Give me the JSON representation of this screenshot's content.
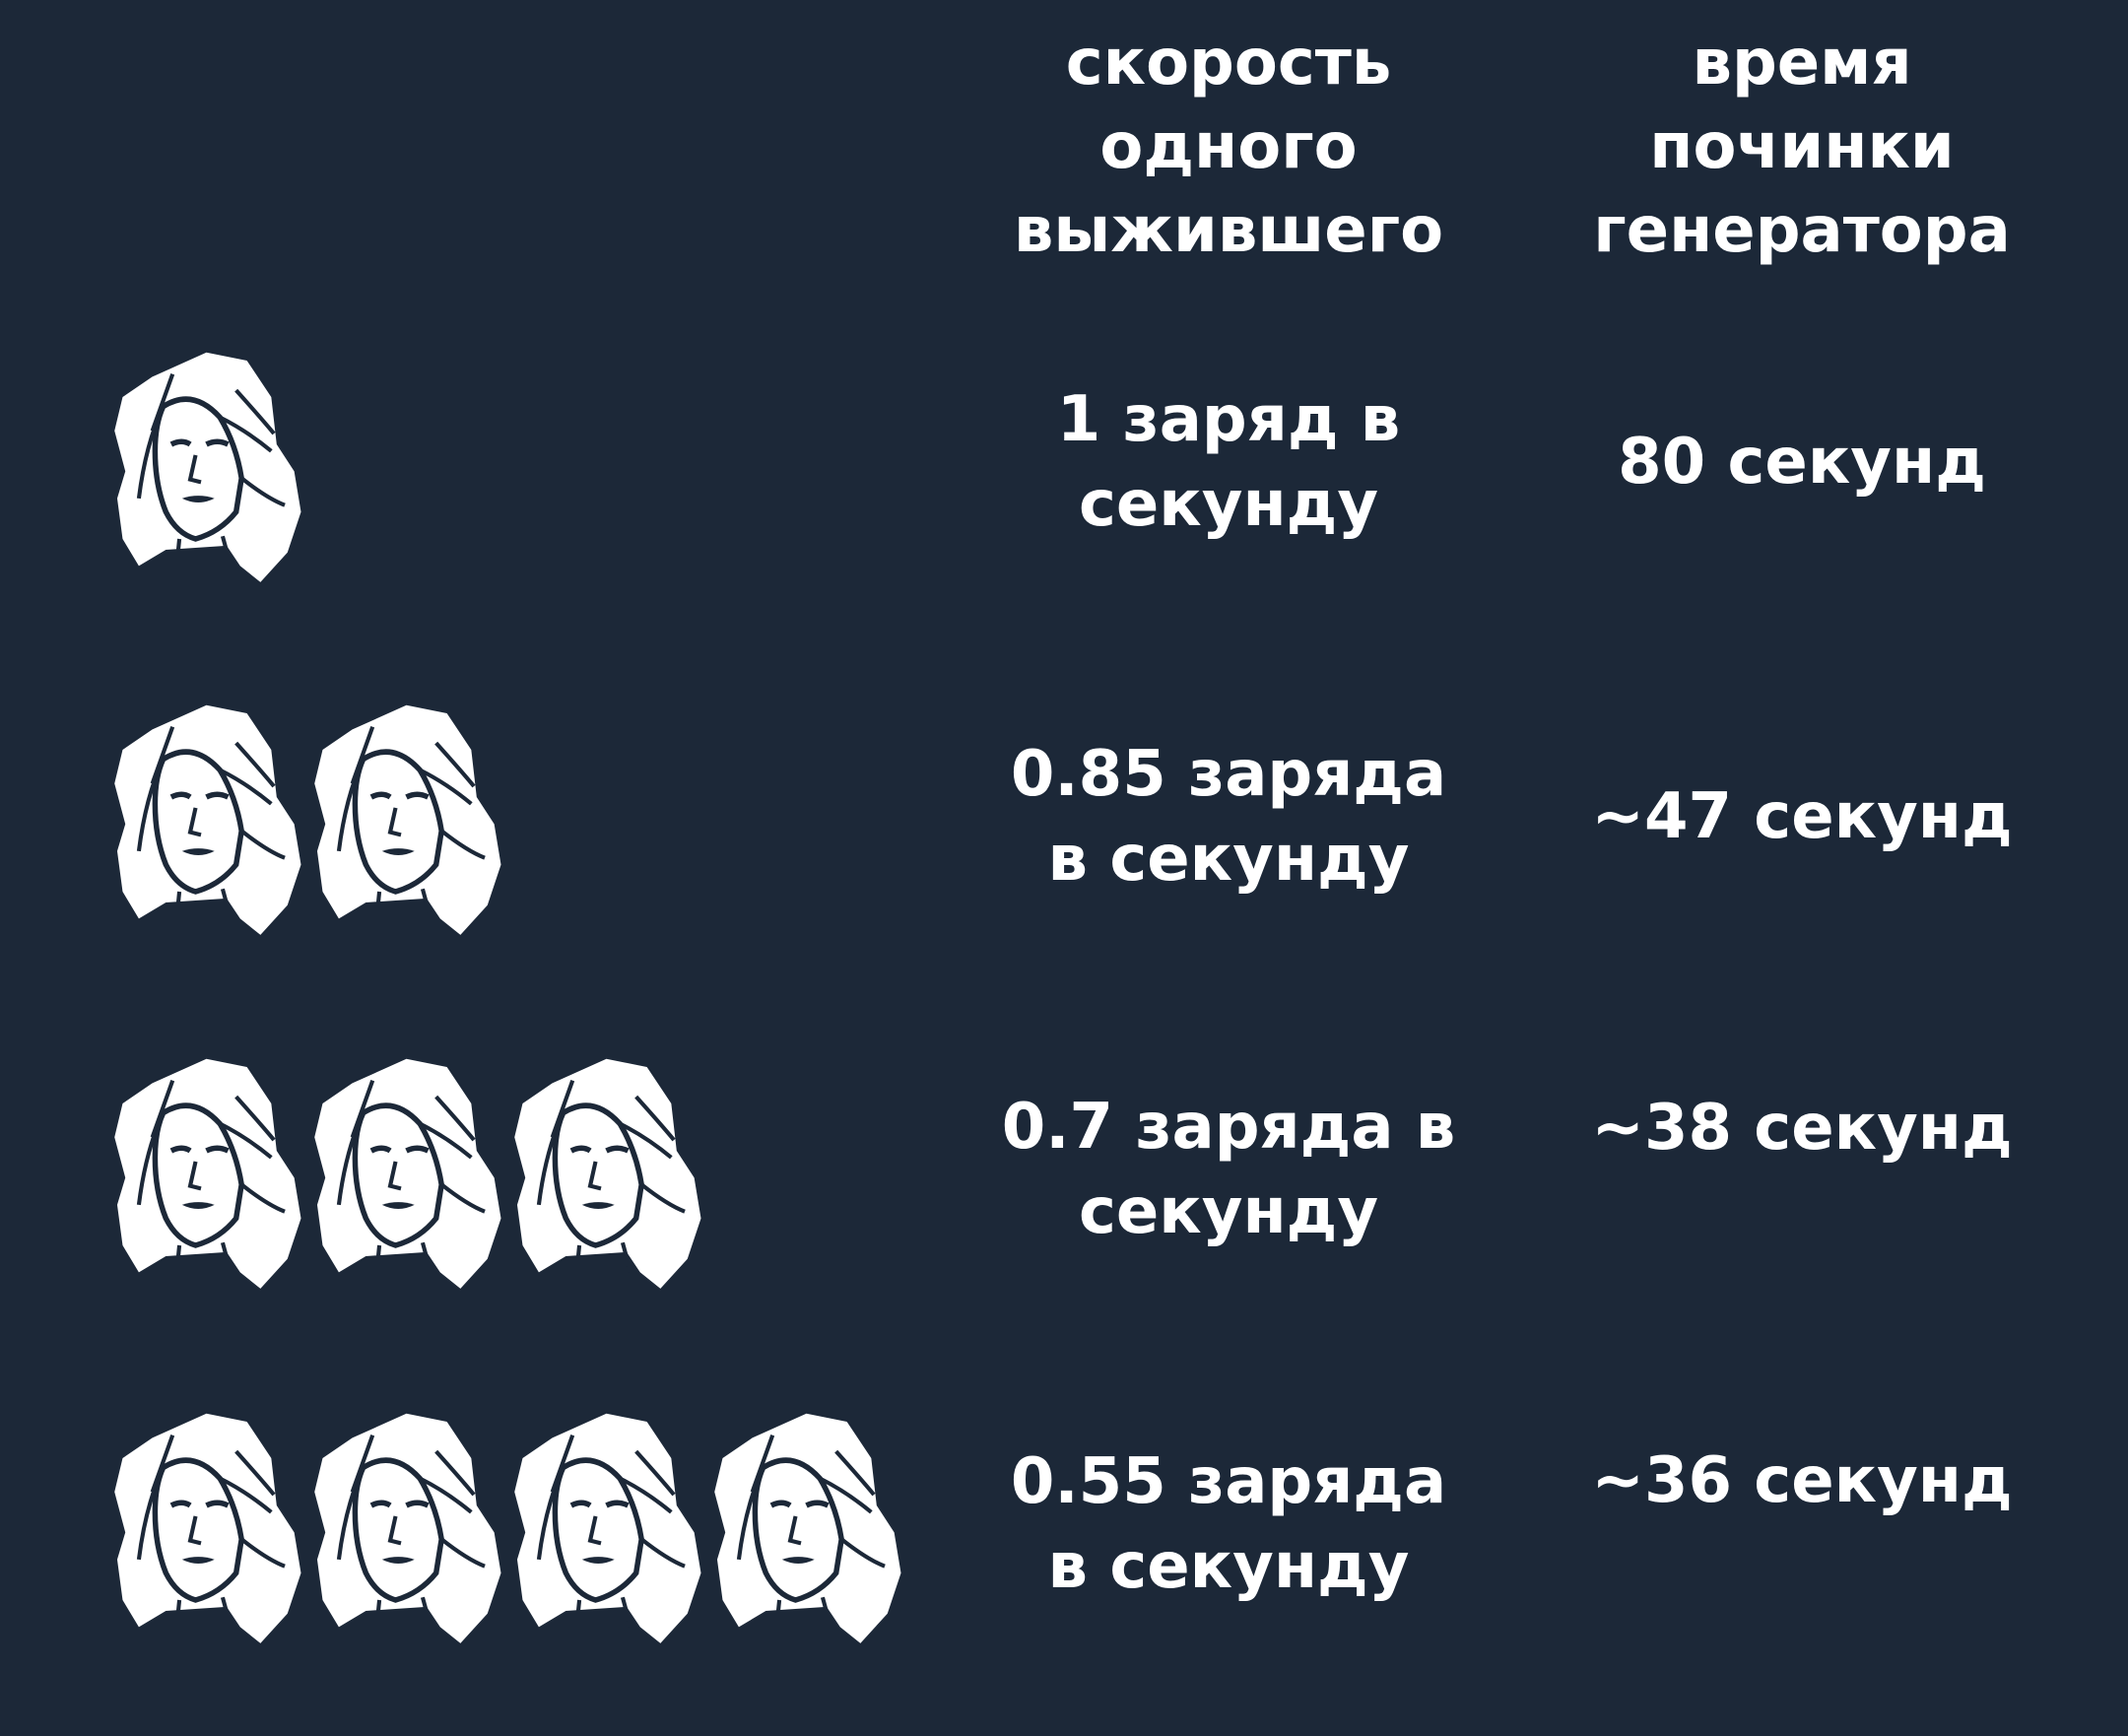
{
  "colors": {
    "background": "#1c2838",
    "text": "#ffffff"
  },
  "headers": {
    "speed": "скорость\nодного\nвыжившего",
    "time": "время\nпочинки\nгенератора"
  },
  "rows": [
    {
      "survivors": 1,
      "speed": "1 заряд в\nсекунду",
      "time": "80 секунд"
    },
    {
      "survivors": 2,
      "speed": "0.85 заряда\nв секунду",
      "time": "~47 секунд"
    },
    {
      "survivors": 3,
      "speed": "0.7 заряда в\nсекунду",
      "time": "~38 секунд"
    },
    {
      "survivors": 4,
      "speed": "0.55 заряда\nв секунду",
      "time": "~36 секунд"
    }
  ],
  "icon": "survivor-face-icon"
}
